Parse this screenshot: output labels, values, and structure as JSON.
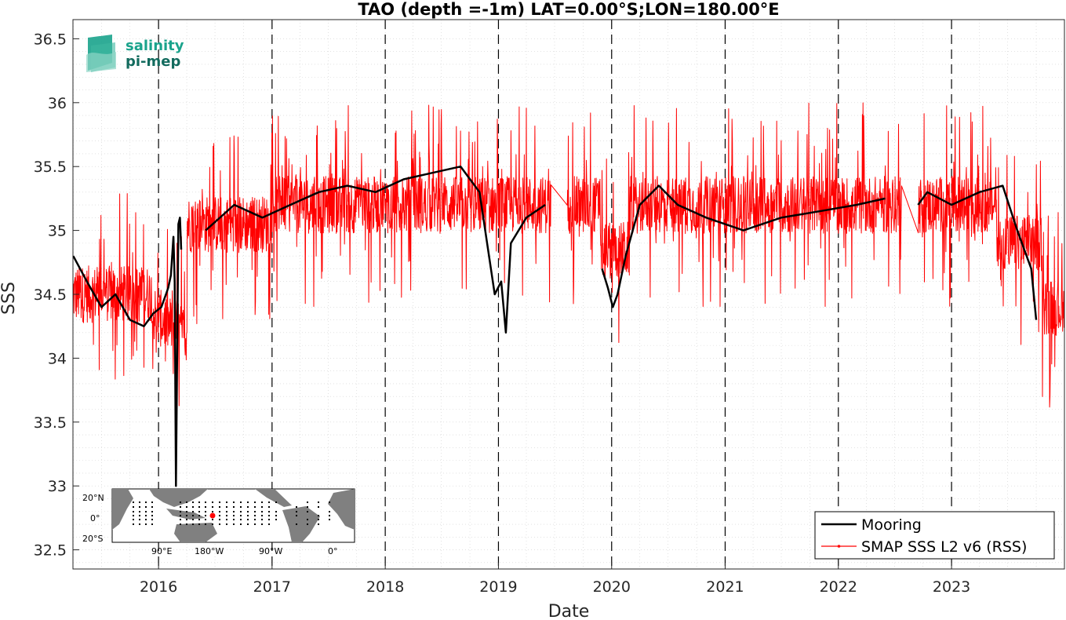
{
  "logo": {
    "line1": "salinity",
    "line2": "pi-mep",
    "color1": "#1aa38c",
    "color2": "#136b5e"
  },
  "inset_map": {
    "lat_labels": [
      "20°N",
      "0°",
      "20°S"
    ],
    "lon_labels": [
      "90°E",
      "180°W",
      "90°W",
      "0°"
    ]
  },
  "chart_data": {
    "type": "line",
    "title": "TAO (depth =-1m) LAT=0.00°S;LON=180.00°E",
    "xlabel": "Date",
    "ylabel": "SSS",
    "xlim": [
      "2015-03-31",
      "2023-12-31"
    ],
    "ylim": [
      32.35,
      36.65
    ],
    "x_ticks": [
      "2016",
      "2017",
      "2018",
      "2019",
      "2020",
      "2021",
      "2022",
      "2023"
    ],
    "y_ticks": [
      32.5,
      33,
      33.5,
      34,
      34.5,
      35,
      35.5,
      36,
      36.5
    ],
    "grid": true,
    "year_lines": "dashed",
    "legend_position": "bottom-right",
    "series": [
      {
        "name": "Mooring",
        "color": "#000000",
        "points": [
          [
            "2015-04-01",
            34.8
          ],
          [
            "2015-05-15",
            34.6
          ],
          [
            "2015-07-01",
            34.4
          ],
          [
            "2015-08-15",
            34.5
          ],
          [
            "2015-10-01",
            34.3
          ],
          [
            "2015-11-15",
            34.25
          ],
          [
            "2015-12-15",
            34.35
          ],
          [
            "2016-01-10",
            34.4
          ],
          [
            "2016-01-25",
            34.5
          ],
          [
            "2016-02-01",
            34.55
          ],
          [
            "2016-02-10",
            34.65
          ],
          [
            "2016-02-18",
            34.95
          ],
          [
            "2016-02-22",
            34.6
          ],
          [
            "2016-02-26",
            33.0
          ],
          [
            "2016-03-05",
            35.05
          ],
          [
            "2016-03-10",
            35.1
          ],
          [
            "2016-03-14",
            34.85
          ],
          [
            null,
            null
          ],
          [
            "2016-06-01",
            35.0
          ],
          [
            "2016-09-01",
            35.2
          ],
          [
            "2016-12-01",
            35.1
          ],
          [
            "2017-03-01",
            35.2
          ],
          [
            "2017-06-01",
            35.3
          ],
          [
            "2017-09-01",
            35.35
          ],
          [
            "2017-12-01",
            35.3
          ],
          [
            "2018-03-01",
            35.4
          ],
          [
            "2018-06-01",
            35.45
          ],
          [
            "2018-09-01",
            35.5
          ],
          [
            "2018-11-01",
            35.3
          ],
          [
            "2018-12-20",
            34.5
          ],
          [
            "2019-01-10",
            34.6
          ],
          [
            "2019-01-25",
            34.2
          ],
          [
            "2019-02-10",
            34.9
          ],
          [
            "2019-04-01",
            35.1
          ],
          [
            "2019-06-01",
            35.2
          ],
          [
            null,
            null
          ],
          [
            "2019-12-01",
            34.7
          ],
          [
            "2019-12-20",
            34.55
          ],
          [
            "2020-01-05",
            34.4
          ],
          [
            "2020-01-20",
            34.5
          ],
          [
            "2020-02-15",
            34.8
          ],
          [
            "2020-04-01",
            35.2
          ],
          [
            "2020-06-01",
            35.35
          ],
          [
            "2020-08-01",
            35.2
          ],
          [
            "2020-11-01",
            35.1
          ],
          [
            "2021-03-01",
            35.0
          ],
          [
            "2021-07-01",
            35.1
          ],
          [
            "2021-11-01",
            35.15
          ],
          [
            "2022-03-01",
            35.2
          ],
          [
            "2022-06-01",
            35.25
          ],
          [
            null,
            null
          ],
          [
            "2022-09-15",
            35.2
          ],
          [
            "2022-10-15",
            35.3
          ],
          [
            "2023-01-01",
            35.2
          ],
          [
            "2023-04-01",
            35.3
          ],
          [
            "2023-06-15",
            35.35
          ],
          [
            "2023-08-01",
            35.0
          ],
          [
            "2023-09-15",
            34.7
          ],
          [
            "2023-10-01",
            34.3
          ]
        ]
      },
      {
        "name": "SMAP SSS L2 v6 (RSS)",
        "color": "#ff0000"
      }
    ]
  }
}
